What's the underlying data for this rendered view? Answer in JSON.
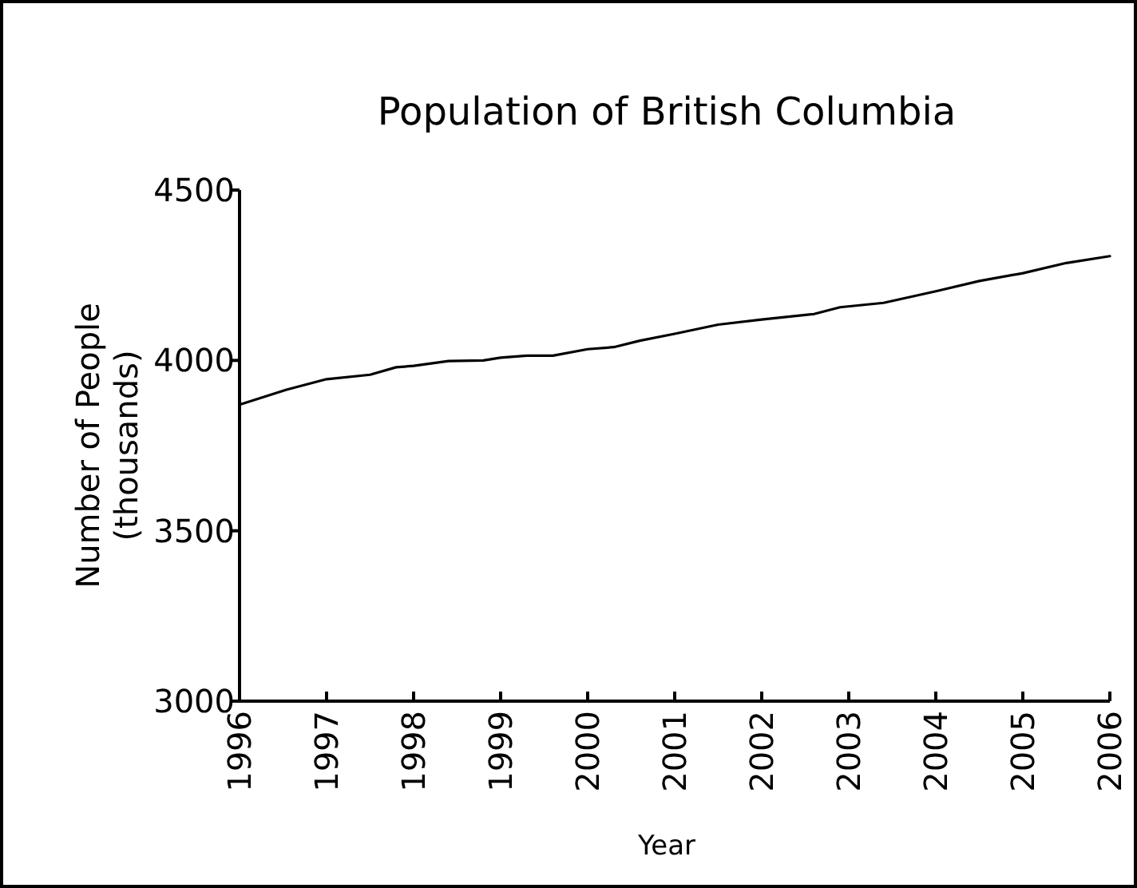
{
  "chart_data": {
    "type": "line",
    "title": "Population of British Columbia",
    "xlabel": "Year",
    "ylabel": "Number of People\n(thousands)",
    "x": [
      1996,
      1996.54,
      1997,
      1997.5,
      1997.8,
      1998,
      1998.4,
      1998.8,
      1999,
      1999.3,
      1999.6,
      2000,
      2000.3,
      2000.6,
      2001,
      2001.5,
      2002,
      2002.6,
      2002.9,
      2003.4,
      2004,
      2004.5,
      2005,
      2005.5,
      2006
    ],
    "series": [
      {
        "color": "#000000",
        "values": [
          3870,
          3914,
          3945,
          3958,
          3980,
          3984,
          3998,
          4000,
          4008,
          4014,
          4014,
          4033,
          4039,
          4058,
          4078,
          4105,
          4120,
          4136,
          4156,
          4169,
          4203,
          4233,
          4256,
          4286,
          4306
        ]
      }
    ],
    "xlim": [
      1996,
      2006
    ],
    "xticks": [
      1996,
      1997,
      1998,
      1999,
      2000,
      2001,
      2002,
      2003,
      2004,
      2005,
      2006
    ],
    "ylim": [
      3000,
      4500
    ],
    "yticks": [
      3000,
      3500,
      4000,
      4500
    ],
    "marker": "none",
    "line_style": "solid"
  }
}
